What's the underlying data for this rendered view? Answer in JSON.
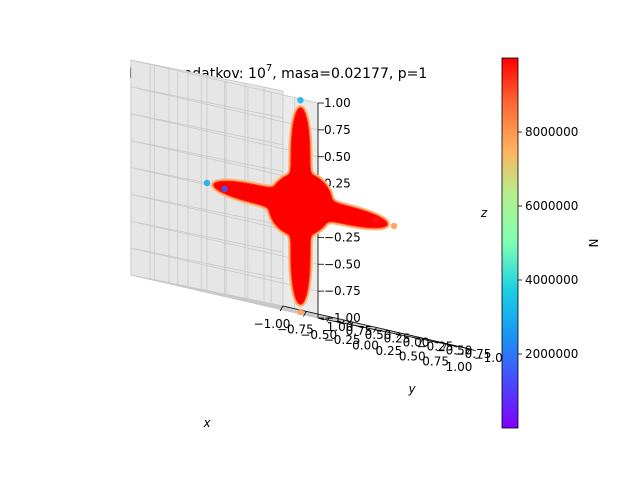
{
  "chart_data": {
    "type": "scatter",
    "projection": "3d",
    "title": {
      "prefix": "Prikaz podatkov: 10",
      "exponent": "7",
      "suffix": ", masa=0.02177, p=1"
    },
    "xlabel": "x",
    "ylabel": "y",
    "zlabel": "z",
    "xlim": [
      -1.0,
      1.0
    ],
    "ylim": [
      -1.0,
      1.0
    ],
    "zlim": [
      -1.0,
      1.0
    ],
    "x_ticks": [
      "−1.00",
      "−0.75",
      "−0.50",
      "−0.25",
      "0.00",
      "0.25",
      "0.50",
      "0.75",
      "1.00"
    ],
    "y_ticks": [
      "−1.00",
      "−0.75",
      "−0.50",
      "−0.25",
      "0.00",
      "0.25",
      "0.50",
      "0.75",
      "1.00"
    ],
    "z_ticks": [
      "−1.00",
      "−0.75",
      "−0.50",
      "−0.25",
      "0.00",
      "0.25",
      "0.50",
      "0.75",
      "1.00"
    ],
    "grid": true,
    "colormap": "rainbow",
    "shape": "six-pointed star along ±x, ±y, ±z axes",
    "points": [
      {
        "x": 0.0,
        "y": 0.0,
        "z": 0.97,
        "n": 3200000
      },
      {
        "x": 0.0,
        "y": 0.0,
        "z": -1.0,
        "n": 7800000
      },
      {
        "x": -1.0,
        "y": 0.0,
        "z": 0.0,
        "n": 3000000
      },
      {
        "x": 1.0,
        "y": 0.0,
        "z": 0.0,
        "n": 7900000
      },
      {
        "x": 0.0,
        "y": 1.0,
        "z": 0.0,
        "n": 1500000
      },
      {
        "x": 0.0,
        "y": -1.0,
        "z": 0.0,
        "n": 9800000
      }
    ],
    "colorbar": {
      "label": "N",
      "min": 0,
      "max": 10000000,
      "ticks": [
        {
          "value": 2000000,
          "label": "2000000"
        },
        {
          "value": 4000000,
          "label": "4000000"
        },
        {
          "value": 6000000,
          "label": "6000000"
        },
        {
          "value": 8000000,
          "label": "8000000"
        }
      ]
    }
  }
}
